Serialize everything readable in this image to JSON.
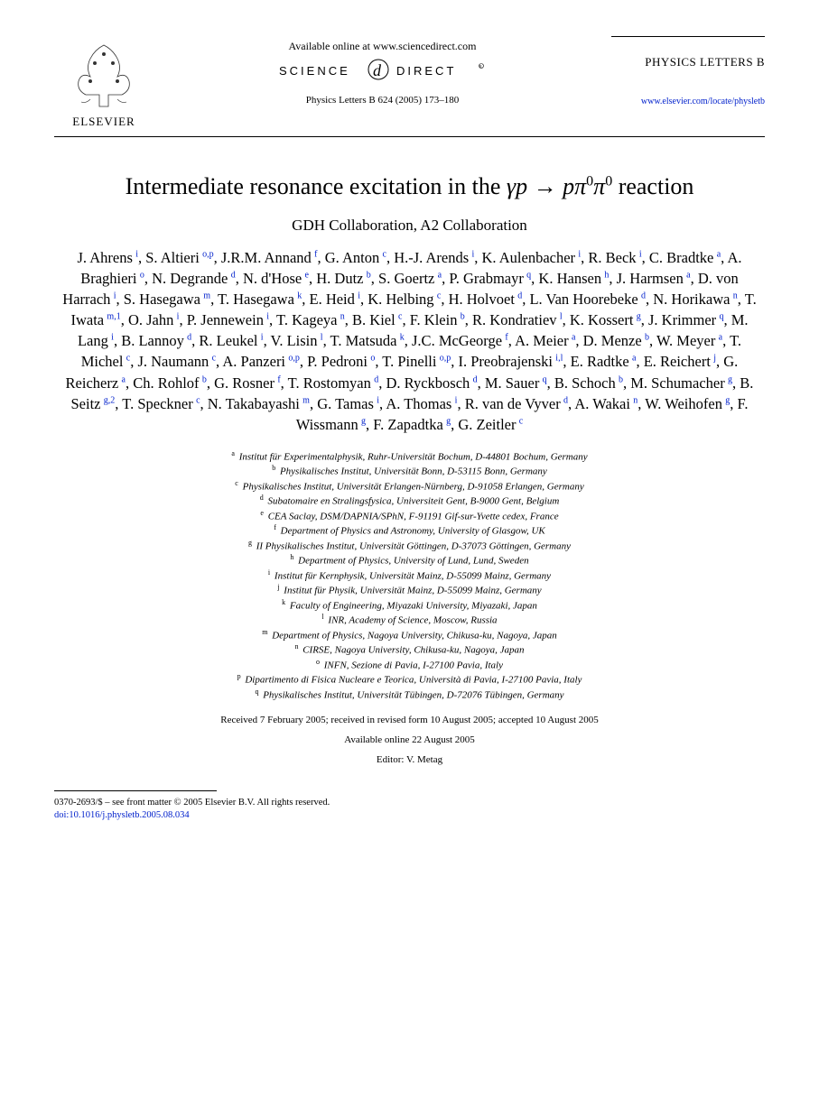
{
  "header": {
    "elsevier_label": "ELSEVIER",
    "available_online": "Available online at www.sciencedirect.com",
    "science_direct_text": "SCIENCE DIRECT",
    "citation": "Physics Letters B 624 (2005) 173–180",
    "journal_name": "PHYSICS LETTERS B",
    "journal_link": "www.elsevier.com/locate/physletb"
  },
  "title": {
    "prefix": "Intermediate resonance excitation in the ",
    "reaction_lhs": "γp",
    "arrow": " → ",
    "reaction_rhs": "pπ",
    "sup": "0",
    "reaction_rhs2": "π",
    "sup2": "0",
    "suffix": " reaction"
  },
  "collaboration": "GDH Collaboration, A2 Collaboration",
  "authors": [
    {
      "n": "J. Ahrens",
      "s": "i"
    },
    {
      "n": "S. Altieri",
      "s": "o,p"
    },
    {
      "n": "J.R.M. Annand",
      "s": "f"
    },
    {
      "n": "G. Anton",
      "s": "c"
    },
    {
      "n": "H.-J. Arends",
      "s": "i"
    },
    {
      "n": "K. Aulenbacher",
      "s": "i"
    },
    {
      "n": "R. Beck",
      "s": "i"
    },
    {
      "n": "C. Bradtke",
      "s": "a"
    },
    {
      "n": "A. Braghieri",
      "s": "o"
    },
    {
      "n": "N. Degrande",
      "s": "d"
    },
    {
      "n": "N. d'Hose",
      "s": "e"
    },
    {
      "n": "H. Dutz",
      "s": "b"
    },
    {
      "n": "S. Goertz",
      "s": "a"
    },
    {
      "n": "P. Grabmayr",
      "s": "q"
    },
    {
      "n": "K. Hansen",
      "s": "h"
    },
    {
      "n": "J. Harmsen",
      "s": "a"
    },
    {
      "n": "D. von Harrach",
      "s": "i"
    },
    {
      "n": "S. Hasegawa",
      "s": "m"
    },
    {
      "n": "T. Hasegawa",
      "s": "k"
    },
    {
      "n": "E. Heid",
      "s": "i"
    },
    {
      "n": "K. Helbing",
      "s": "c"
    },
    {
      "n": "H. Holvoet",
      "s": "d"
    },
    {
      "n": "L. Van Hoorebeke",
      "s": "d"
    },
    {
      "n": "N. Horikawa",
      "s": "n"
    },
    {
      "n": "T. Iwata",
      "s": "m,1"
    },
    {
      "n": "O. Jahn",
      "s": "i"
    },
    {
      "n": "P. Jennewein",
      "s": "i"
    },
    {
      "n": "T. Kageya",
      "s": "n"
    },
    {
      "n": "B. Kiel",
      "s": "c"
    },
    {
      "n": "F. Klein",
      "s": "b"
    },
    {
      "n": "R. Kondratiev",
      "s": "l"
    },
    {
      "n": "K. Kossert",
      "s": "g"
    },
    {
      "n": "J. Krimmer",
      "s": "q"
    },
    {
      "n": "M. Lang",
      "s": "i"
    },
    {
      "n": "B. Lannoy",
      "s": "d"
    },
    {
      "n": "R. Leukel",
      "s": "i"
    },
    {
      "n": "V. Lisin",
      "s": "l"
    },
    {
      "n": "T. Matsuda",
      "s": "k"
    },
    {
      "n": "J.C. McGeorge",
      "s": "f"
    },
    {
      "n": "A. Meier",
      "s": "a"
    },
    {
      "n": "D. Menze",
      "s": "b"
    },
    {
      "n": "W. Meyer",
      "s": "a"
    },
    {
      "n": "T. Michel",
      "s": "c"
    },
    {
      "n": "J. Naumann",
      "s": "c"
    },
    {
      "n": "A. Panzeri",
      "s": "o,p"
    },
    {
      "n": "P. Pedroni",
      "s": "o"
    },
    {
      "n": "T. Pinelli",
      "s": "o,p"
    },
    {
      "n": "I. Preobrajenski",
      "s": "i,l"
    },
    {
      "n": "E. Radtke",
      "s": "a"
    },
    {
      "n": "E. Reichert",
      "s": "j"
    },
    {
      "n": "G. Reicherz",
      "s": "a"
    },
    {
      "n": "Ch. Rohlof",
      "s": "b"
    },
    {
      "n": "G. Rosner",
      "s": "f"
    },
    {
      "n": "T. Rostomyan",
      "s": "d"
    },
    {
      "n": "D. Ryckbosch",
      "s": "d"
    },
    {
      "n": "M. Sauer",
      "s": "q"
    },
    {
      "n": "B. Schoch",
      "s": "b"
    },
    {
      "n": "M. Schumacher",
      "s": "g"
    },
    {
      "n": "B. Seitz",
      "s": "g,2"
    },
    {
      "n": "T. Speckner",
      "s": "c"
    },
    {
      "n": "N. Takabayashi",
      "s": "m"
    },
    {
      "n": "G. Tamas",
      "s": "i"
    },
    {
      "n": "A. Thomas",
      "s": "i"
    },
    {
      "n": "R. van de Vyver",
      "s": "d"
    },
    {
      "n": "A. Wakai",
      "s": "n"
    },
    {
      "n": "W. Weihofen",
      "s": "g"
    },
    {
      "n": "F. Wissmann",
      "s": "g"
    },
    {
      "n": "F. Zapadtka",
      "s": "g"
    },
    {
      "n": "G. Zeitler",
      "s": "c"
    }
  ],
  "affiliations": [
    {
      "k": "a",
      "t": "Institut für Experimentalphysik, Ruhr-Universität Bochum, D-44801 Bochum, Germany"
    },
    {
      "k": "b",
      "t": "Physikalisches Institut, Universität Bonn, D-53115 Bonn, Germany"
    },
    {
      "k": "c",
      "t": "Physikalisches Institut, Universität Erlangen-Nürnberg, D-91058 Erlangen, Germany"
    },
    {
      "k": "d",
      "t": "Subatomaire en Stralingsfysica, Universiteit Gent, B-9000 Gent, Belgium"
    },
    {
      "k": "e",
      "t": "CEA Saclay, DSM/DAPNIA/SPhN, F-91191 Gif-sur-Yvette cedex, France"
    },
    {
      "k": "f",
      "t": "Department of Physics and Astronomy, University of Glasgow, UK"
    },
    {
      "k": "g",
      "t": "II Physikalisches Institut, Universität Göttingen, D-37073 Göttingen, Germany"
    },
    {
      "k": "h",
      "t": "Department of Physics, University of Lund, Lund, Sweden"
    },
    {
      "k": "i",
      "t": "Institut für Kernphysik, Universität Mainz, D-55099 Mainz, Germany"
    },
    {
      "k": "j",
      "t": "Institut für Physik, Universität Mainz, D-55099 Mainz, Germany"
    },
    {
      "k": "k",
      "t": "Faculty of Engineering, Miyazaki University, Miyazaki, Japan"
    },
    {
      "k": "l",
      "t": "INR, Academy of Science, Moscow, Russia"
    },
    {
      "k": "m",
      "t": "Department of Physics, Nagoya University, Chikusa-ku, Nagoya, Japan"
    },
    {
      "k": "n",
      "t": "CIRSE, Nagoya University, Chikusa-ku, Nagoya, Japan"
    },
    {
      "k": "o",
      "t": "INFN, Sezione di Pavia, I-27100 Pavia, Italy"
    },
    {
      "k": "p",
      "t": "Dipartimento di Fisica Nucleare e Teorica, Università di Pavia, I-27100 Pavia, Italy"
    },
    {
      "k": "q",
      "t": "Physikalisches Institut, Universität Tübingen, D-72076 Tübingen, Germany"
    }
  ],
  "dates": "Received 7 February 2005; received in revised form 10 August 2005; accepted 10 August 2005",
  "available_date": "Available online 22 August 2005",
  "editor": "Editor: V. Metag",
  "footer": {
    "copyright": "0370-2693/$ – see front matter  © 2005 Elsevier B.V. All rights reserved.",
    "doi": "doi:10.1016/j.physletb.2005.08.034"
  },
  "colors": {
    "link": "#0020cc",
    "text": "#000000",
    "bg": "#ffffff"
  },
  "fonts": {
    "title_pt": 26,
    "collab_pt": 17,
    "authors_pt": 16.5,
    "affil_pt": 11,
    "footer_pt": 10.5
  }
}
